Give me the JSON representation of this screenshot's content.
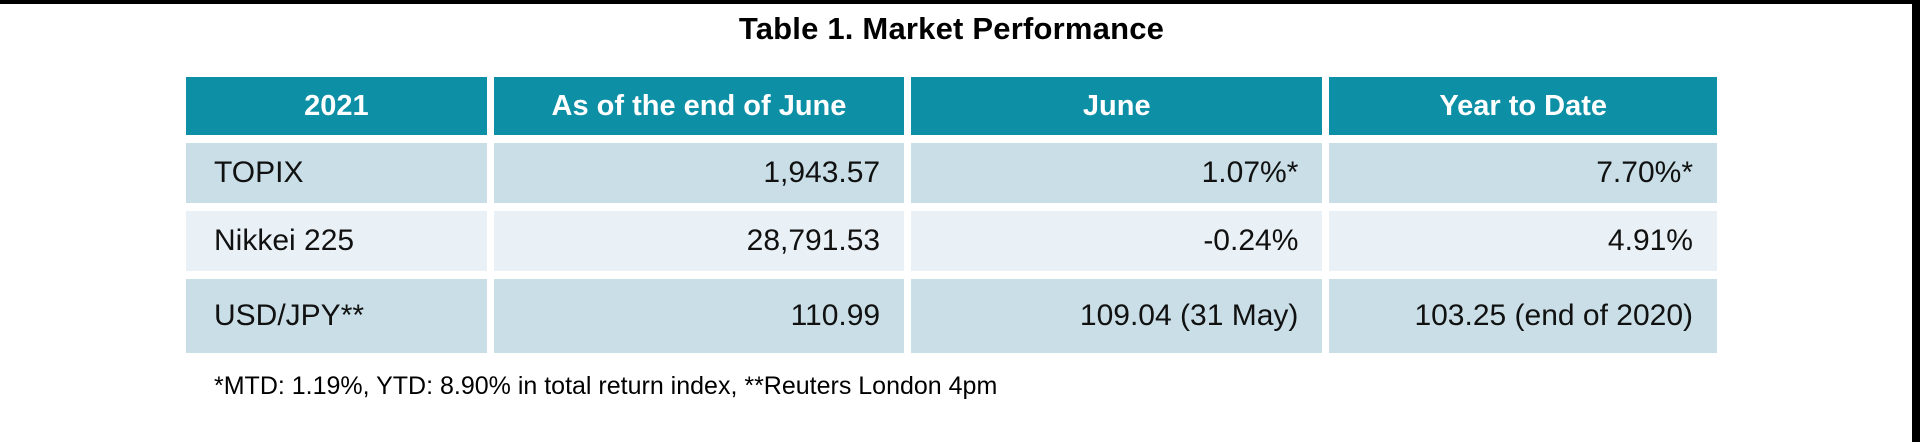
{
  "page": {
    "title": "Table 1. Market Performance",
    "footnote": "*MTD: 1.19%, YTD: 8.90% in total return index, **Reuters London 4pm"
  },
  "table": {
    "columns": [
      "2021",
      "As of the end of June",
      "June",
      "Year to Date"
    ],
    "rows": [
      {
        "label": "TOPIX",
        "values": [
          "1,943.57",
          "1.07%*",
          "7.70%*"
        ]
      },
      {
        "label": "Nikkei 225",
        "values": [
          "28,791.53",
          "-0.24%",
          "4.91%"
        ]
      },
      {
        "label": "USD/JPY**",
        "values": [
          "110.99",
          "109.04 (31 May)",
          "103.25 (end of 2020)"
        ]
      }
    ]
  },
  "colors": {
    "header_bg": "#0D8FA6",
    "header_text": "#FFFFFF",
    "row_dark_bg": "#C9DEE6",
    "row_light_bg": "#E9F1F6",
    "frame": "#000000"
  }
}
